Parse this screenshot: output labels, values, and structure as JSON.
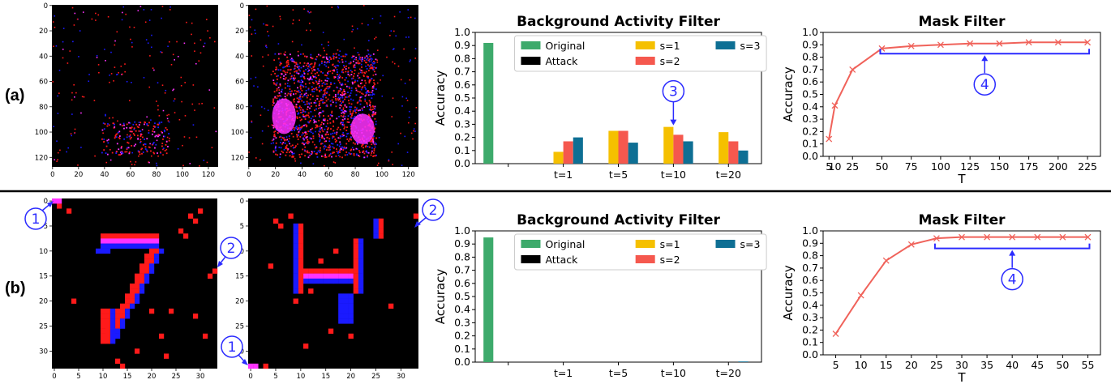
{
  "row_labels": {
    "a": "(a)",
    "b": "(b)"
  },
  "callout_labels": {
    "one": "1",
    "two": "2",
    "three": "3",
    "four": "4"
  },
  "colors": {
    "original": "#3daa6b",
    "attack": "#000000",
    "s1": "#f5c000",
    "s2": "#f5584e",
    "s3": "#0e6f94",
    "mask_line": "#f0625a",
    "callout": "#2b2bff",
    "event_red": "#ff1a1a",
    "event_blue": "#1a1aff",
    "event_magenta": "#ff33ff"
  },
  "event_images": {
    "a": {
      "left": {
        "x_ticks": [
          "0",
          "20",
          "40",
          "60",
          "80",
          "100",
          "120"
        ],
        "y_ticks": [
          "0",
          "20",
          "40",
          "60",
          "80",
          "100",
          "120"
        ],
        "range": 128
      },
      "right": {
        "x_ticks": [
          "0",
          "20",
          "40",
          "60",
          "80",
          "100",
          "120"
        ],
        "y_ticks": [
          "0",
          "20",
          "40",
          "60",
          "80",
          "100",
          "120"
        ],
        "range": 128
      }
    },
    "b": {
      "left": {
        "x_ticks": [
          "0",
          "5",
          "10",
          "15",
          "20",
          "25",
          "30"
        ],
        "y_ticks": [
          "0",
          "5",
          "10",
          "15",
          "20",
          "25",
          "30"
        ],
        "range": 34
      },
      "right": {
        "x_ticks": [
          "0",
          "5",
          "10",
          "15",
          "20",
          "25",
          "30"
        ],
        "y_ticks": [
          "0",
          "5",
          "10",
          "15",
          "20",
          "25",
          "30"
        ],
        "range": 34
      }
    }
  },
  "chart_data": [
    {
      "id": "ba_a",
      "type": "bar",
      "title": "Background Activity Filter",
      "ylabel": "Accuracy",
      "ylim": [
        0.0,
        1.0
      ],
      "yticks": [
        "0.0",
        "0.1",
        "0.2",
        "0.3",
        "0.4",
        "0.5",
        "0.6",
        "0.7",
        "0.8",
        "0.9",
        "1.0"
      ],
      "categories": [
        "",
        "t=1",
        "t=5",
        "t=10",
        "t=20"
      ],
      "series": [
        {
          "name": "Original",
          "color": "#3daa6b",
          "values": [
            0.92,
            null,
            null,
            null,
            null
          ]
        },
        {
          "name": "Attack",
          "color": "#000000",
          "values": [
            null,
            0.0,
            0.0,
            0.0,
            0.0
          ]
        },
        {
          "name": "s=1",
          "color": "#f5c000",
          "values": [
            null,
            0.09,
            0.25,
            0.28,
            0.24
          ]
        },
        {
          "name": "s=2",
          "color": "#f5584e",
          "values": [
            null,
            0.17,
            0.25,
            0.22,
            0.17
          ]
        },
        {
          "name": "s=3",
          "color": "#0e6f94",
          "values": [
            null,
            0.2,
            0.16,
            0.17,
            0.1
          ]
        }
      ],
      "legend": "top-right"
    },
    {
      "id": "mask_a",
      "type": "line",
      "title": "Mask Filter",
      "xlabel": "T",
      "ylabel": "Accuracy",
      "ylim": [
        0.0,
        1.0
      ],
      "yticks": [
        "0.0",
        "0.1",
        "0.2",
        "0.3",
        "0.4",
        "0.5",
        "0.6",
        "0.7",
        "0.8",
        "0.9",
        "1.0"
      ],
      "xlim": [
        0,
        236
      ],
      "xticks": [
        {
          "v": 5,
          "label": "5"
        },
        {
          "v": 10,
          "label": "10"
        },
        {
          "v": 25,
          "label": "25"
        },
        {
          "v": 50,
          "label": "50"
        },
        {
          "v": 75,
          "label": "75"
        },
        {
          "v": 100,
          "label": "100"
        },
        {
          "v": 125,
          "label": "125"
        },
        {
          "v": 150,
          "label": "150"
        },
        {
          "v": 175,
          "label": "175"
        },
        {
          "v": 200,
          "label": "200"
        },
        {
          "v": 225,
          "label": "225"
        }
      ],
      "x": [
        5,
        10,
        25,
        50,
        75,
        100,
        125,
        150,
        175,
        200,
        225
      ],
      "y": [
        0.14,
        0.41,
        0.7,
        0.87,
        0.89,
        0.9,
        0.91,
        0.91,
        0.92,
        0.92,
        0.92
      ],
      "bracket_x": [
        50,
        225
      ]
    },
    {
      "id": "ba_b",
      "type": "bar",
      "title": "Background Activity Filter",
      "ylabel": "Accuracy",
      "ylim": [
        0.0,
        1.0
      ],
      "yticks": [
        "0.0",
        "0.1",
        "0.2",
        "0.3",
        "0.4",
        "0.5",
        "0.6",
        "0.7",
        "0.8",
        "0.9",
        "1.0"
      ],
      "categories": [
        "",
        "t=1",
        "t=5",
        "t=10",
        "t=20"
      ],
      "series": [
        {
          "name": "Original",
          "color": "#3daa6b",
          "values": [
            0.95,
            null,
            null,
            null,
            null
          ]
        },
        {
          "name": "Attack",
          "color": "#000000",
          "values": [
            null,
            0.0,
            0.0,
            0.0,
            0.0
          ]
        },
        {
          "name": "s=1",
          "color": "#f5c000",
          "values": [
            null,
            0.0,
            0.0,
            0.0,
            0.0
          ]
        },
        {
          "name": "s=2",
          "color": "#f5584e",
          "values": [
            null,
            0.0,
            0.0,
            0.0,
            0.0
          ]
        },
        {
          "name": "s=3",
          "color": "#0e6f94",
          "values": [
            null,
            0.0,
            0.0,
            0.0,
            0.005
          ]
        }
      ],
      "legend": "top-right"
    },
    {
      "id": "mask_b",
      "type": "line",
      "title": "Mask Filter",
      "xlabel": "T",
      "ylabel": "Accuracy",
      "ylim": [
        0.0,
        1.0
      ],
      "yticks": [
        "0.0",
        "0.1",
        "0.2",
        "0.3",
        "0.4",
        "0.5",
        "0.6",
        "0.7",
        "0.8",
        "0.9",
        "1.0"
      ],
      "xlim": [
        2.5,
        57.5
      ],
      "xticks": [
        {
          "v": 5,
          "label": "5"
        },
        {
          "v": 10,
          "label": "10"
        },
        {
          "v": 15,
          "label": "15"
        },
        {
          "v": 20,
          "label": "20"
        },
        {
          "v": 25,
          "label": "25"
        },
        {
          "v": 30,
          "label": "30"
        },
        {
          "v": 35,
          "label": "35"
        },
        {
          "v": 40,
          "label": "40"
        },
        {
          "v": 45,
          "label": "45"
        },
        {
          "v": 50,
          "label": "50"
        },
        {
          "v": 55,
          "label": "55"
        }
      ],
      "x": [
        5,
        10,
        15,
        20,
        25,
        30,
        35,
        40,
        45,
        50,
        55
      ],
      "y": [
        0.17,
        0.48,
        0.76,
        0.89,
        0.94,
        0.95,
        0.95,
        0.95,
        0.95,
        0.95,
        0.95
      ],
      "bracket_x": [
        25,
        55
      ]
    }
  ]
}
